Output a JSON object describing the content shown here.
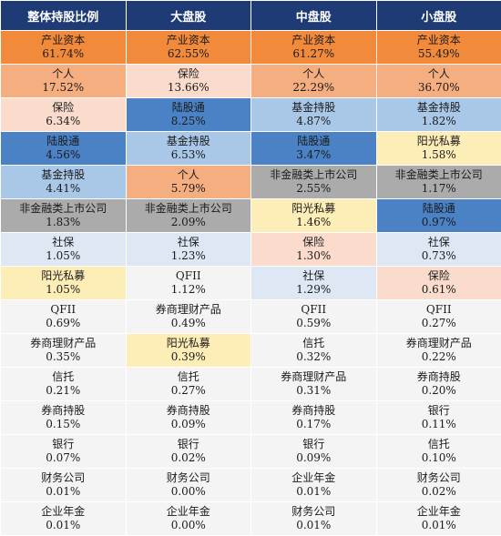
{
  "headers": [
    "整体持股比例",
    "大盘股",
    "中盘股",
    "小盘股"
  ],
  "rows": [
    [
      {
        "name": "产业资本",
        "pct": "61.74%",
        "color": "orange"
      },
      {
        "name": "产业资本",
        "pct": "62.55%",
        "color": "orange"
      },
      {
        "name": "产业资本",
        "pct": "61.27%",
        "color": "orange"
      },
      {
        "name": "产业资本",
        "pct": "55.49%",
        "color": "orange"
      }
    ],
    [
      {
        "name": "个人",
        "pct": "17.52%",
        "color": "salmon"
      },
      {
        "name": "保险",
        "pct": "13.66%",
        "color": "peach"
      },
      {
        "name": "个人",
        "pct": "22.29%",
        "color": "salmon"
      },
      {
        "name": "个人",
        "pct": "36.70%",
        "color": "salmon"
      }
    ],
    [
      {
        "name": "保险",
        "pct": "6.34%",
        "color": "peach"
      },
      {
        "name": "陆股通",
        "pct": "8.25%",
        "color": "blue"
      },
      {
        "name": "基金持股",
        "pct": "4.87%",
        "color": "lblue"
      },
      {
        "name": "基金持股",
        "pct": "1.82%",
        "color": "lblue"
      }
    ],
    [
      {
        "name": "陆股通",
        "pct": "4.56%",
        "color": "blue"
      },
      {
        "name": "基金持股",
        "pct": "6.53%",
        "color": "lblue"
      },
      {
        "name": "陆股通",
        "pct": "3.47%",
        "color": "blue"
      },
      {
        "name": "阳光私募",
        "pct": "1.58%",
        "color": "yellow"
      }
    ],
    [
      {
        "name": "基金持股",
        "pct": "4.41%",
        "color": "lblue"
      },
      {
        "name": "个人",
        "pct": "5.79%",
        "color": "salmon"
      },
      {
        "name": "非金融类上市公司",
        "pct": "2.55%",
        "color": "grey"
      },
      {
        "name": "非金融类上市公司",
        "pct": "1.17%",
        "color": "grey"
      }
    ],
    [
      {
        "name": "非金融类上市公司",
        "pct": "1.83%",
        "color": "grey"
      },
      {
        "name": "非金融类上市公司",
        "pct": "2.09%",
        "color": "grey"
      },
      {
        "name": "阳光私募",
        "pct": "1.46%",
        "color": "yellow"
      },
      {
        "name": "陆股通",
        "pct": "0.97%",
        "color": "blue"
      }
    ],
    [
      {
        "name": "社保",
        "pct": "1.05%",
        "color": "pale"
      },
      {
        "name": "社保",
        "pct": "1.23%",
        "color": "pale"
      },
      {
        "name": "保险",
        "pct": "1.30%",
        "color": "peach"
      },
      {
        "name": "社保",
        "pct": "0.73%",
        "color": "pale"
      }
    ],
    [
      {
        "name": "阳光私募",
        "pct": "1.05%",
        "color": "yellow"
      },
      {
        "name": "QFII",
        "pct": "1.12%",
        "color": "white"
      },
      {
        "name": "社保",
        "pct": "1.29%",
        "color": "pale"
      },
      {
        "name": "保险",
        "pct": "0.61%",
        "color": "peach"
      }
    ],
    [
      {
        "name": "QFII",
        "pct": "0.69%",
        "color": "white"
      },
      {
        "name": "券商理财产品",
        "pct": "0.49%",
        "color": "white"
      },
      {
        "name": "QFII",
        "pct": "0.59%",
        "color": "white"
      },
      {
        "name": "QFII",
        "pct": "0.27%",
        "color": "white"
      }
    ],
    [
      {
        "name": "券商理财产品",
        "pct": "0.35%",
        "color": "white"
      },
      {
        "name": "阳光私募",
        "pct": "0.39%",
        "color": "yellow"
      },
      {
        "name": "信托",
        "pct": "0.32%",
        "color": "white"
      },
      {
        "name": "券商理财产品",
        "pct": "0.22%",
        "color": "white"
      }
    ],
    [
      {
        "name": "信托",
        "pct": "0.21%",
        "color": "white"
      },
      {
        "name": "信托",
        "pct": "0.27%",
        "color": "white"
      },
      {
        "name": "券商理财产品",
        "pct": "0.31%",
        "color": "white"
      },
      {
        "name": "券商持股",
        "pct": "0.20%",
        "color": "white"
      }
    ],
    [
      {
        "name": "券商持股",
        "pct": "0.15%",
        "color": "white"
      },
      {
        "name": "券商持股",
        "pct": "0.09%",
        "color": "white"
      },
      {
        "name": "券商持股",
        "pct": "0.17%",
        "color": "white"
      },
      {
        "name": "银行",
        "pct": "0.11%",
        "color": "white"
      }
    ],
    [
      {
        "name": "银行",
        "pct": "0.07%",
        "color": "white"
      },
      {
        "name": "银行",
        "pct": "0.02%",
        "color": "white"
      },
      {
        "name": "银行",
        "pct": "0.09%",
        "color": "white"
      },
      {
        "name": "信托",
        "pct": "0.10%",
        "color": "white"
      }
    ],
    [
      {
        "name": "财务公司",
        "pct": "0.01%",
        "color": "white"
      },
      {
        "name": "财务公司",
        "pct": "0.00%",
        "color": "white"
      },
      {
        "name": "企业年金",
        "pct": "0.01%",
        "color": "white"
      },
      {
        "name": "财务公司",
        "pct": "0.02%",
        "color": "white"
      }
    ],
    [
      {
        "name": "企业年金",
        "pct": "0.01%",
        "color": "white"
      },
      {
        "name": "企业年金",
        "pct": "0.00%",
        "color": "white"
      },
      {
        "name": "财务公司",
        "pct": "0.01%",
        "color": "white"
      },
      {
        "name": "企业年金",
        "pct": "0.01%",
        "color": "white"
      }
    ]
  ]
}
